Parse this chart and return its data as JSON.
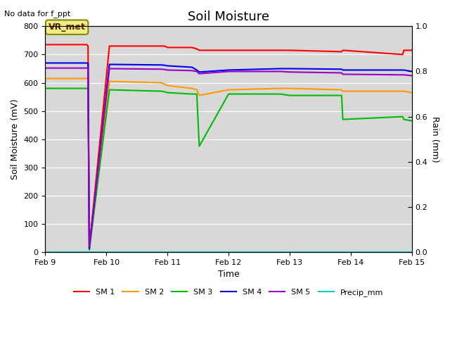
{
  "title": "Soil Moisture",
  "subtitle": "No data for f_ppt",
  "ylabel_left": "Soil Moisture (mV)",
  "ylabel_right": "Rain (mm)",
  "xlabel": "Time",
  "ylim_left": [
    0,
    800
  ],
  "ylim_right": [
    0.0,
    1.0
  ],
  "yticks_left": [
    0,
    100,
    200,
    300,
    400,
    500,
    600,
    700,
    800
  ],
  "yticks_right": [
    0.0,
    0.2,
    0.4,
    0.6,
    0.8,
    1.0
  ],
  "background_color": "#d8d8d8",
  "vr_met_label": "VR_met",
  "vr_met_bg": "#eeee88",
  "vr_met_border": "#888800",
  "series": {
    "SM1": {
      "color": "#ff0000",
      "label": "SM 1",
      "x": [
        9.0,
        9.68,
        9.7,
        9.72,
        10.05,
        10.9,
        10.95,
        11.0,
        11.4,
        11.48,
        11.52,
        12.0,
        12.85,
        13.0,
        13.85,
        13.87,
        14.85,
        14.87,
        15.0
      ],
      "y": [
        735,
        735,
        730,
        15,
        730,
        730,
        730,
        725,
        725,
        720,
        715,
        715,
        715,
        715,
        710,
        715,
        700,
        715,
        715
      ]
    },
    "SM2": {
      "color": "#ff9900",
      "label": "SM 2",
      "x": [
        9.0,
        9.68,
        9.7,
        9.72,
        10.05,
        10.9,
        10.95,
        11.0,
        11.4,
        11.48,
        11.52,
        12.0,
        12.85,
        13.0,
        13.85,
        13.87,
        14.85,
        14.87,
        15.0
      ],
      "y": [
        615,
        615,
        610,
        10,
        605,
        600,
        595,
        590,
        580,
        575,
        555,
        575,
        580,
        580,
        575,
        570,
        570,
        570,
        565
      ]
    },
    "SM3": {
      "color": "#00bb00",
      "label": "SM 3",
      "x": [
        9.0,
        9.68,
        9.7,
        9.72,
        10.05,
        10.9,
        10.95,
        11.0,
        11.4,
        11.48,
        11.52,
        12.0,
        12.85,
        13.0,
        13.85,
        13.87,
        14.85,
        14.87,
        15.0
      ],
      "y": [
        580,
        580,
        578,
        8,
        575,
        570,
        568,
        565,
        560,
        560,
        375,
        560,
        560,
        555,
        555,
        470,
        480,
        470,
        465
      ]
    },
    "SM4": {
      "color": "#0000ee",
      "label": "SM 4",
      "x": [
        9.0,
        9.68,
        9.7,
        9.72,
        10.05,
        10.9,
        10.95,
        11.0,
        11.4,
        11.48,
        11.52,
        12.0,
        12.85,
        13.0,
        13.85,
        13.87,
        14.85,
        14.87,
        15.0
      ],
      "y": [
        670,
        670,
        668,
        12,
        665,
        663,
        662,
        660,
        655,
        645,
        638,
        645,
        650,
        650,
        648,
        645,
        645,
        645,
        640
      ]
    },
    "SM5": {
      "color": "#9900cc",
      "label": "SM 5",
      "x": [
        9.0,
        9.68,
        9.7,
        9.72,
        10.05,
        10.9,
        10.95,
        11.0,
        11.4,
        11.48,
        11.52,
        12.0,
        12.85,
        13.0,
        13.85,
        13.87,
        14.85,
        14.87,
        15.0
      ],
      "y": [
        652,
        652,
        650,
        20,
        650,
        648,
        647,
        645,
        643,
        640,
        632,
        640,
        640,
        638,
        635,
        630,
        628,
        628,
        625
      ]
    },
    "Precip": {
      "color": "#00cccc",
      "label": "Precip_mm",
      "x": [
        9.0,
        15.0
      ],
      "y": [
        0.0,
        0.0
      ]
    }
  },
  "xtick_labels": [
    "Feb 9",
    "Feb 10",
    "Feb 11",
    "Feb 12",
    "Feb 13",
    "Feb 14",
    "Feb 15"
  ],
  "xtick_positions": [
    9,
    10,
    11,
    12,
    13,
    14,
    15
  ]
}
